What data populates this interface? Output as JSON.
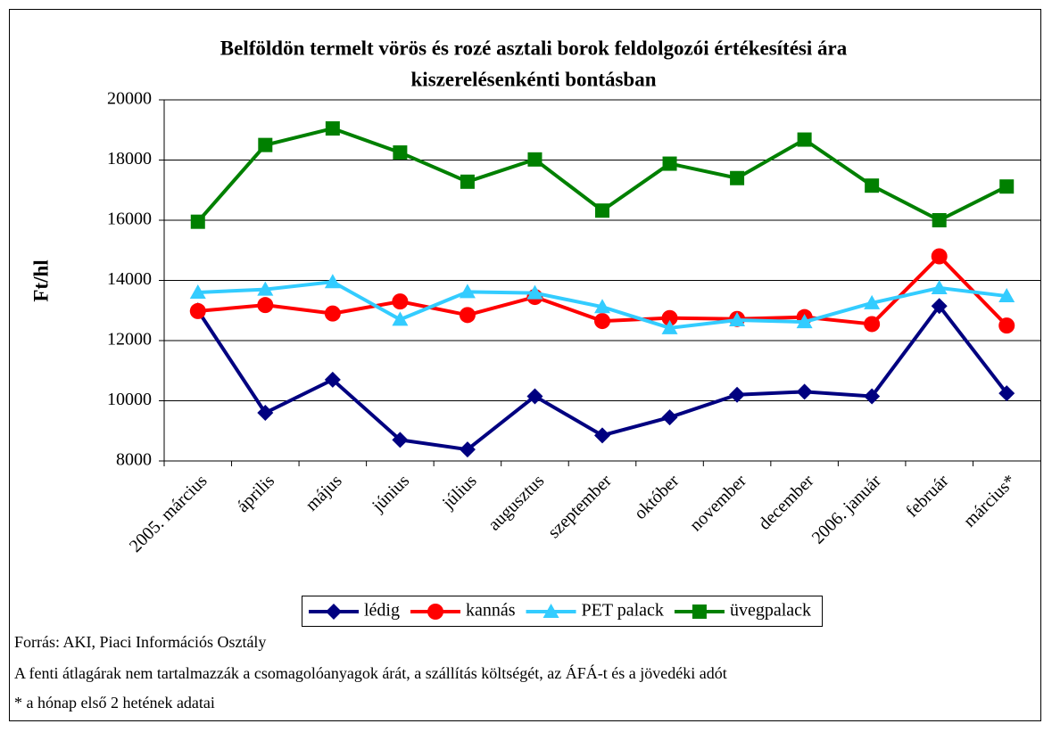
{
  "chart_data": {
    "type": "line",
    "title": [
      "Belföldön termelt vörös és rozé asztali borok feldolgozói értékesítési ára",
      "kiszerelésenkénti bontásban"
    ],
    "y_label": "Ft/hl",
    "categories": [
      "2005. március",
      "április",
      "május",
      "június",
      "július",
      "augusztus",
      "szeptember",
      "október",
      "november",
      "december",
      "2006. január",
      "február",
      "március*"
    ],
    "series": [
      {
        "name": "lédig",
        "color": "#000080",
        "marker": "diamond",
        "values": [
          13000,
          9600,
          10700,
          8700,
          8380,
          10150,
          8850,
          9450,
          10200,
          10300,
          10150,
          13150,
          10250
        ]
      },
      {
        "name": "kannás",
        "color": "#ff0000",
        "marker": "circle",
        "values": [
          12980,
          13180,
          12900,
          13300,
          12850,
          13450,
          12650,
          12750,
          12720,
          12780,
          12550,
          14800,
          12500
        ]
      },
      {
        "name": "PET palack",
        "color": "#33ccff",
        "marker": "triangle",
        "values": [
          13600,
          13700,
          13950,
          12700,
          13620,
          13580,
          13120,
          12420,
          12680,
          12620,
          13250,
          13750,
          13480
        ]
      },
      {
        "name": "üvegpalack",
        "color": "#008000",
        "marker": "square",
        "values": [
          15950,
          18500,
          19050,
          18250,
          17280,
          18020,
          16320,
          17880,
          17400,
          18680,
          17150,
          16000,
          17120
        ]
      }
    ],
    "ylim": [
      8000,
      20000
    ],
    "yticks": [
      8000,
      10000,
      12000,
      14000,
      16000,
      18000,
      20000
    ],
    "grid": true,
    "notes": [
      "Forrás: AKI, Piaci Információs Osztály",
      "A fenti átlagárak nem tartalmazzák a csomagolóanyagok árát, a szállítás költségét, az ÁFÁ-t és a jövedéki adót",
      "* a hónap első 2 hetének adatai"
    ]
  }
}
